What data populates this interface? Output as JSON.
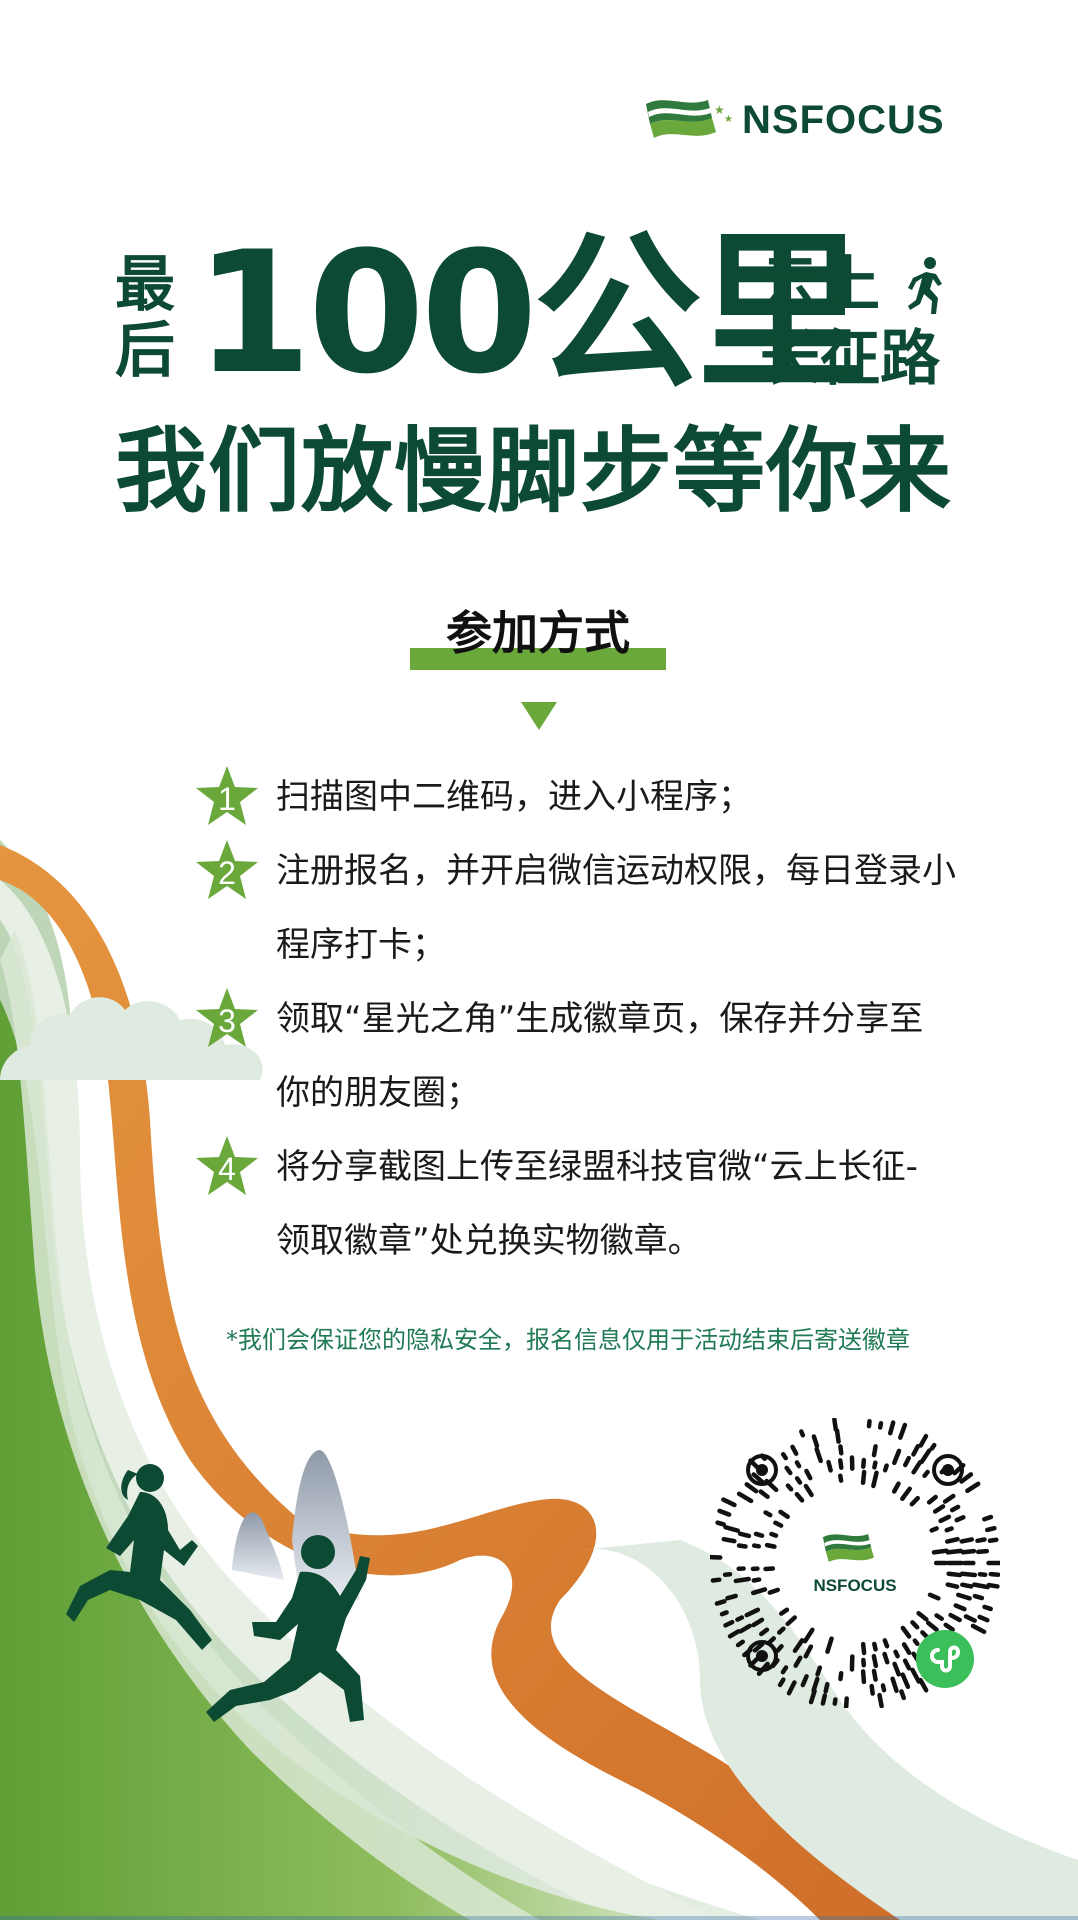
{
  "brand": {
    "name": "NSFOCUS"
  },
  "headline": {
    "prefix": "最后",
    "number": "100公里",
    "line1": "云上",
    "line2": "长征路",
    "subline": "我们放慢脚步等你来"
  },
  "section": {
    "title": "参加方式"
  },
  "steps": [
    {
      "num": "1",
      "lines": [
        "扫描图中二维码，进入小程序；"
      ]
    },
    {
      "num": "2",
      "lines": [
        "注册报名，并开启微信运动权限，每日登录小",
        "程序打卡；"
      ]
    },
    {
      "num": "3",
      "lines": [
        "领取“星光之角”生成徽章页，保存并分享至",
        "你的朋友圈；"
      ]
    },
    {
      "num": "4",
      "lines": [
        "将分享截图上传至绿盟科技官微“云上长征-",
        "领取徽章”处兑换实物徽章。"
      ]
    }
  ],
  "privacy_note": "*我们会保证您的隐私安全，报名信息仅用于活动结束后寄送徽章",
  "qr": {
    "center_label": "NSFOCUS"
  },
  "colors": {
    "dark_green": "#0c4a33",
    "accent_green": "#6aa83c",
    "light_green": "#dfeae0",
    "orange": "#e08a35"
  }
}
